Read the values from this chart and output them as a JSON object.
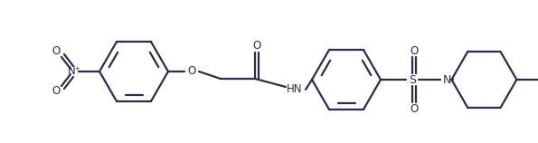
{
  "bg_color": "#ffffff",
  "line_color": "#2d2d44",
  "line_width": 1.6,
  "fig_width": 5.95,
  "fig_height": 1.58,
  "dpi": 100,
  "xlim": [
    0,
    595
  ],
  "ylim": [
    0,
    158
  ]
}
